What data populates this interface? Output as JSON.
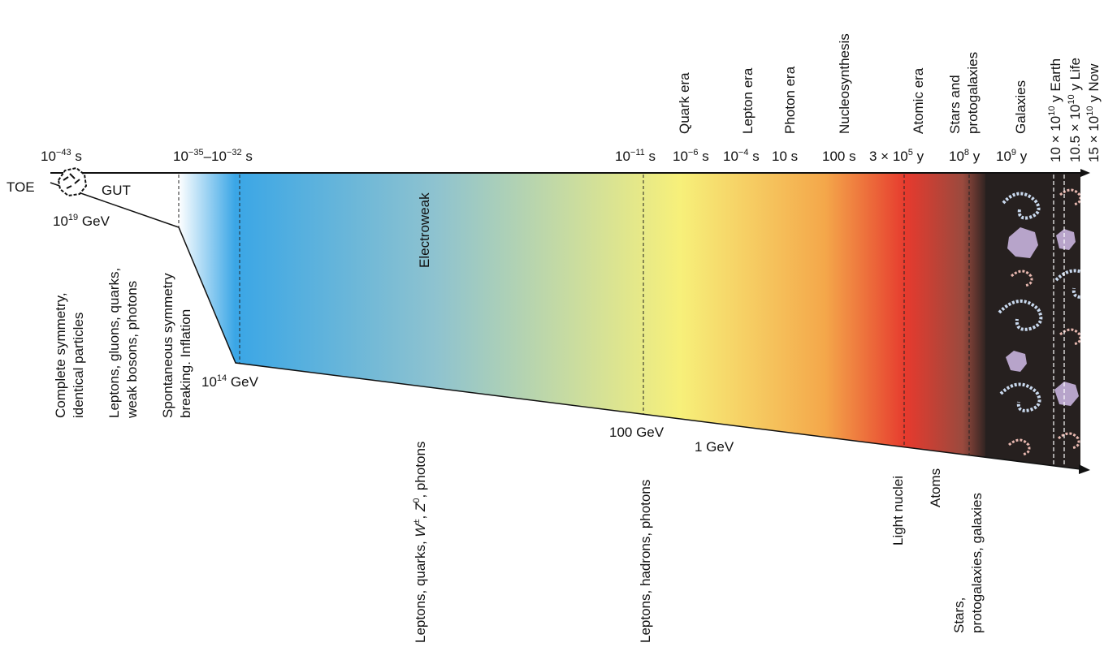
{
  "top_times": {
    "t_toe": "10",
    "t_toe_exp": "−43",
    "t_toe_unit": " s",
    "t_gut_a": "10",
    "t_gut_a_exp": "−35",
    "t_gut_dash": "–10",
    "t_gut_b_exp": "−32",
    "t_gut_unit": " s",
    "t_quark": "10",
    "t_quark_exp": "−11",
    "t_quark_unit": " s",
    "t_lepton": "10",
    "t_lepton_exp": "−6",
    "t_lepton_unit": " s",
    "t_photon": "10",
    "t_photon_exp": "−4",
    "t_photon_unit": " s",
    "t_10s": "10 s",
    "t_100s": "100 s",
    "t_atomic": "3 × 10",
    "t_atomic_exp": "5",
    "t_atomic_unit": " y",
    "t_stars": "10",
    "t_stars_exp": "8",
    "t_stars_unit": " y",
    "t_gal": "10",
    "t_gal_exp": "9",
    "t_gal_unit": " y"
  },
  "eras": {
    "quark": "Quark era",
    "lepton": "Lepton era",
    "photon": "Photon era",
    "nucleo": "Nucleosynthesis",
    "atomic": "Atomic era",
    "stars1": "Stars and",
    "stars2": "protogalaxies",
    "galaxies": "Galaxies",
    "earth_a": "10 × 10",
    "earth_exp": "10",
    "earth_b": " y Earth",
    "life_a": "10.5 × 10",
    "life_exp": "10",
    "life_b": " y Life",
    "now_a": "15 × 10",
    "now_exp": "10",
    "now_b": " y Now"
  },
  "labels": {
    "toe": "TOE",
    "gut": "GUT",
    "electroweak": "Electroweak",
    "e19": "10",
    "e19_exp": "19",
    "e19_unit": " GeV",
    "e14": "10",
    "e14_exp": "14",
    "e14_unit": " GeV",
    "e100": "100 GeV",
    "e1": "1  GeV"
  },
  "bottom": {
    "complete1": "Complete symmetry,",
    "complete2": "identical particles",
    "leptons1": "Leptons, gluons, quarks,",
    "leptons2": "weak bosons, photons",
    "spont1": "Spontaneous symmetry",
    "spont2": "breaking. Inflation",
    "lqw_a": "Leptons, quarks, ",
    "lqw_w": "W",
    "lqw_wsup": "±",
    "lqw_b": ", ",
    "lqw_z": "Z",
    "lqw_zsup": "0",
    "lqw_c": ", photons",
    "lhp": "Leptons, hadrons, photons",
    "light": "Light nuclei",
    "atoms": "Atoms",
    "spg1": "Stars,",
    "spg2": "protogalaxies, galaxies"
  },
  "colors": {
    "blue": "#3aa6e6",
    "teal": "#8fc3cf",
    "yellow": "#f7f07a",
    "orange": "#f4a74a",
    "red": "#e63a2e",
    "dark": "#2a2220"
  }
}
